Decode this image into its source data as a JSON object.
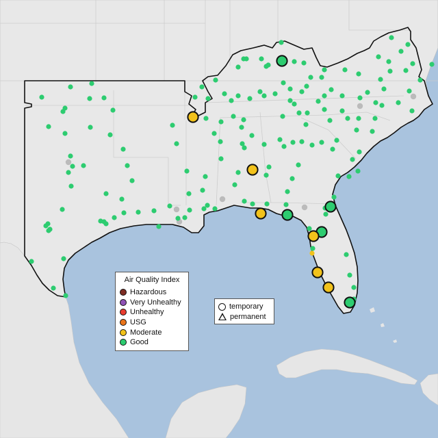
{
  "legend": {
    "title": "Air Quality Index",
    "categories": [
      {
        "label": "Hazardous",
        "color": "#7e2d24"
      },
      {
        "label": "Very Unhealthy",
        "color": "#8f52b5"
      },
      {
        "label": "Unhealthy",
        "color": "#e83d2f"
      },
      {
        "label": "USG",
        "color": "#e9741a"
      },
      {
        "label": "Moderate",
        "color": "#f2c21b"
      },
      {
        "label": "Good",
        "color": "#2dcc70"
      }
    ]
  },
  "monitor_legend": {
    "temporary": "temporary",
    "permanent": "permanent"
  },
  "map": {
    "region": "Southeastern United States",
    "colors": {
      "water": "#a9c3de",
      "land": "#eeeeee",
      "focus_land": "#ececec",
      "border": "#111111",
      "state_line": "#cfcfcf"
    },
    "large_monitors": [
      {
        "aqi": "Good",
        "shape": "temporary"
      },
      {
        "aqi": "Moderate",
        "shape": "temporary"
      },
      {
        "aqi": "Moderate",
        "shape": "temporary"
      },
      {
        "aqi": "Moderate",
        "shape": "temporary"
      },
      {
        "aqi": "Good",
        "shape": "temporary"
      },
      {
        "aqi": "Good",
        "shape": "temporary"
      },
      {
        "aqi": "Good",
        "shape": "temporary"
      },
      {
        "aqi": "Moderate",
        "shape": "temporary"
      },
      {
        "aqi": "Moderate",
        "shape": "temporary"
      },
      {
        "aqi": "Moderate",
        "shape": "temporary"
      },
      {
        "aqi": "Good",
        "shape": "temporary"
      }
    ]
  }
}
